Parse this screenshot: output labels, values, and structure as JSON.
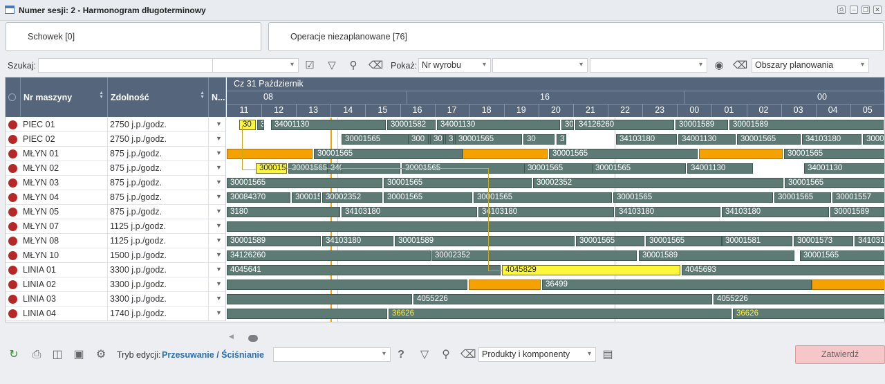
{
  "window": {
    "title": "Numer sesji: 2 - Harmonogram długoterminowy"
  },
  "panels": {
    "clipboard": "Schowek [0]",
    "unplanned": "Operacje niezaplanowane [76]"
  },
  "filter": {
    "search_label": "Szukaj:",
    "show_label": "Pokaż:",
    "show_select": "Nr wyrobu",
    "areas_select": "Obszary planowania"
  },
  "grid": {
    "headers": {
      "machine": "Nr maszyny",
      "capacity": "Zdolność",
      "n": "N..."
    },
    "rows": [
      {
        "machine": "PIEC 01",
        "capacity": "2750 j.p./godz."
      },
      {
        "machine": "PIEC 02",
        "capacity": "2750 j.p./godz."
      },
      {
        "machine": "MŁYN 01",
        "capacity": "875 j.p./godz."
      },
      {
        "machine": "MŁYN 02",
        "capacity": "875 j.p./godz."
      },
      {
        "machine": "MŁYN 03",
        "capacity": "875 j.p./godz."
      },
      {
        "machine": "MŁYN 04",
        "capacity": "875 j.p./godz."
      },
      {
        "machine": "MŁYN 05",
        "capacity": "875 j.p./godz."
      },
      {
        "machine": "MŁYN 07",
        "capacity": "1125 j.p./godz."
      },
      {
        "machine": "MŁYN 08",
        "capacity": "1125 j.p./godz."
      },
      {
        "machine": "MŁYN 10",
        "capacity": "1500 j.p./godz."
      },
      {
        "machine": "LINIA 01",
        "capacity": "3300 j.p./godz."
      },
      {
        "machine": "LINIA 02",
        "capacity": "3300 j.p./godz."
      },
      {
        "machine": "LINIA 03",
        "capacity": "3300 j.p./godz."
      },
      {
        "machine": "LINIA 04",
        "capacity": "1740 j.p./godz."
      }
    ]
  },
  "timeline": {
    "day": "Cz 31 Październik",
    "groups": [
      "08",
      "16",
      "00"
    ],
    "hours": [
      "11",
      "12",
      "13",
      "14",
      "15",
      "16",
      "17",
      "18",
      "19",
      "20",
      "21",
      "22",
      "23",
      "00",
      "01",
      "02",
      "03",
      "04",
      "05"
    ]
  },
  "bars": [
    [
      "30",
      "y"
    ],
    [
      "3",
      ""
    ],
    [
      "34001130",
      ""
    ],
    [
      "30001582",
      ""
    ],
    [
      "34001130",
      ""
    ],
    [
      "30",
      ""
    ],
    [
      "34126260",
      ""
    ],
    [
      "30001589",
      ""
    ],
    [
      "30001589",
      ""
    ],
    [
      "30001565",
      ""
    ],
    [
      "300",
      ""
    ],
    [
      "30",
      ""
    ],
    [
      "3",
      ""
    ],
    [
      "30001565",
      ""
    ],
    [
      "30",
      ""
    ],
    [
      "3",
      ""
    ],
    [
      "34103180",
      ""
    ],
    [
      "34001130",
      ""
    ],
    [
      "30001565",
      ""
    ],
    [
      "34103180",
      ""
    ],
    [
      "30001565",
      ""
    ],
    [
      "",
      "o"
    ],
    [
      "30001565",
      ""
    ],
    [
      "",
      "o"
    ],
    [
      "30001565",
      ""
    ],
    [
      "",
      "o"
    ],
    [
      "30001565",
      ""
    ],
    [
      "300015",
      "y"
    ],
    [
      "30001565",
      ""
    ],
    [
      "34011",
      ""
    ],
    [
      "30001565",
      ""
    ],
    [
      "30001565",
      ""
    ],
    [
      "30001565",
      ""
    ],
    [
      "34001130",
      ""
    ],
    [
      "34001130",
      ""
    ],
    [
      "30001565",
      ""
    ],
    [
      "30001565",
      ""
    ],
    [
      "30002352",
      ""
    ],
    [
      "30001565",
      ""
    ],
    [
      "30084370",
      ""
    ],
    [
      "300015",
      ""
    ],
    [
      "30002352",
      ""
    ],
    [
      "30001565",
      ""
    ],
    [
      "30001565",
      ""
    ],
    [
      "30001565",
      ""
    ],
    [
      "30001565",
      ""
    ],
    [
      "30001557",
      ""
    ],
    [
      "30001565",
      ""
    ],
    [
      "3180",
      ""
    ],
    [
      "34103180",
      ""
    ],
    [
      "34103180",
      ""
    ],
    [
      "34103180",
      ""
    ],
    [
      "34103180",
      ""
    ],
    [
      "30001589",
      ""
    ],
    [
      "",
      ""
    ],
    [
      "30001589",
      ""
    ],
    [
      "34103180",
      ""
    ],
    [
      "30001589",
      ""
    ],
    [
      "30001565",
      ""
    ],
    [
      "30001565",
      ""
    ],
    [
      "30001581",
      ""
    ],
    [
      "30001573",
      ""
    ],
    [
      "34103180",
      ""
    ],
    [
      "34126260",
      ""
    ],
    [
      "30002352",
      ""
    ],
    [
      "30001589",
      ""
    ],
    [
      "30001565",
      ""
    ],
    [
      "4045641",
      ""
    ],
    [
      "4045829",
      "y"
    ],
    [
      "4045693",
      ""
    ],
    [
      "",
      ""
    ],
    [
      "",
      "o"
    ],
    [
      "36499",
      ""
    ],
    [
      "",
      "o"
    ],
    [
      "",
      ""
    ],
    [
      "4055226",
      ""
    ],
    [
      "4055226",
      ""
    ],
    [
      "",
      ""
    ],
    [
      "36626",
      "yt"
    ],
    [
      "36626",
      "yt"
    ]
  ],
  "bottom": {
    "mode_label": "Tryb edycji:",
    "mode_value": "Przesuwanie / Ściśnianie",
    "products_select": "Produkty i komponenty",
    "confirm": "Zatwierdź"
  }
}
